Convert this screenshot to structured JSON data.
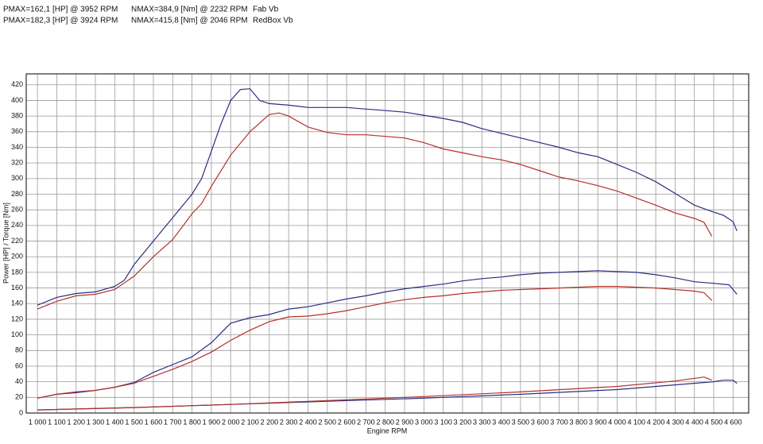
{
  "chart_data": {
    "type": "line",
    "legend": [
      {
        "pmax": "PMAX=162,1 [HP] @ 3952 RPM",
        "nmax": "NMAX=384,9 [Nm] @ 2232 RPM",
        "label": "Fab Vb"
      },
      {
        "pmax": "PMAX=182,3 [HP] @ 3924 RPM",
        "nmax": "NMAX=415,8 [Nm] @ 2046 RPM",
        "label": "RedBox Vb"
      }
    ],
    "y_label": "Power [HP] / Torque [Nm]",
    "x_label": "Engine RPM",
    "xlim": [
      942,
      4681
    ],
    "ylim": [
      0,
      434
    ],
    "grid": true,
    "yticks": [
      0,
      20,
      40,
      60,
      80,
      100,
      120,
      140,
      160,
      180,
      200,
      220,
      240,
      260,
      280,
      300,
      320,
      340,
      360,
      380,
      400,
      420
    ],
    "xticks": [
      {
        "value": 1000,
        "label": "1 000"
      },
      {
        "value": 1100,
        "label": "1 100"
      },
      {
        "value": 1200,
        "label": "1 200"
      },
      {
        "value": 1300,
        "label": "1 300"
      },
      {
        "value": 1400,
        "label": "1 400"
      },
      {
        "value": 1500,
        "label": "1 500"
      },
      {
        "value": 1600,
        "label": "1 600"
      },
      {
        "value": 1700,
        "label": "1 700"
      },
      {
        "value": 1800,
        "label": "1 800"
      },
      {
        "value": 1900,
        "label": "1 900"
      },
      {
        "value": 2000,
        "label": "2 000"
      },
      {
        "value": 2100,
        "label": "2 100"
      },
      {
        "value": 2200,
        "label": "2 200"
      },
      {
        "value": 2300,
        "label": "2 300"
      },
      {
        "value": 2400,
        "label": "2 400"
      },
      {
        "value": 2500,
        "label": "2 500"
      },
      {
        "value": 2600,
        "label": "2 600"
      },
      {
        "value": 2700,
        "label": "2 700"
      },
      {
        "value": 2800,
        "label": "2 800"
      },
      {
        "value": 2900,
        "label": "2 900"
      },
      {
        "value": 3000,
        "label": "3 000"
      },
      {
        "value": 3100,
        "label": "3 100"
      },
      {
        "value": 3200,
        "label": "3 200"
      },
      {
        "value": 3300,
        "label": "3 300"
      },
      {
        "value": 3400,
        "label": "3 400"
      },
      {
        "value": 3500,
        "label": "3 500"
      },
      {
        "value": 3600,
        "label": "3 600"
      },
      {
        "value": 3700,
        "label": "3 700"
      },
      {
        "value": 3800,
        "label": "3 800"
      },
      {
        "value": 3900,
        "label": "3 900"
      },
      {
        "value": 4000,
        "label": "4 000"
      },
      {
        "value": 4100,
        "label": "4 100"
      },
      {
        "value": 4200,
        "label": "4 200"
      },
      {
        "value": 4300,
        "label": "4 300"
      },
      {
        "value": 4400,
        "label": "4 400"
      },
      {
        "value": 4500,
        "label": "4 500"
      },
      {
        "value": 4600,
        "label": "4 600"
      }
    ],
    "series": [
      {
        "color": "#2a2f80",
        "x": [
          1000,
          1100,
          1200,
          1300,
          1400,
          1450,
          1500,
          1600,
          1700,
          1800,
          1850,
          1900,
          1950,
          2000,
          2050,
          2100,
          2150,
          2200,
          2300,
          2400,
          2500,
          2600,
          2700,
          2800,
          2900,
          3000,
          3100,
          3200,
          3300,
          3400,
          3500,
          3600,
          3700,
          3800,
          3900,
          4000,
          4100,
          4200,
          4300,
          4400,
          4500,
          4550,
          4600,
          4620
        ],
        "values": [
          138,
          148,
          153,
          155,
          162,
          170,
          190,
          220,
          250,
          280,
          300,
          335,
          370,
          400,
          414,
          415,
          400,
          396,
          394,
          391,
          391,
          391,
          389,
          387,
          385,
          381,
          377,
          372,
          364,
          358,
          352,
          346,
          340,
          333,
          328,
          318,
          308,
          296,
          281,
          266,
          257,
          253,
          245,
          233
        ]
      },
      {
        "color": "#b5302a",
        "x": [
          1000,
          1100,
          1200,
          1300,
          1400,
          1500,
          1600,
          1700,
          1800,
          1850,
          1900,
          2000,
          2100,
          2200,
          2250,
          2300,
          2400,
          2500,
          2600,
          2700,
          2800,
          2900,
          3000,
          3100,
          3200,
          3300,
          3400,
          3500,
          3600,
          3700,
          3800,
          3900,
          4000,
          4100,
          4200,
          4300,
          4400,
          4450,
          4490
        ],
        "values": [
          133,
          143,
          150,
          152,
          158,
          175,
          200,
          222,
          255,
          268,
          290,
          330,
          360,
          382,
          384,
          380,
          366,
          359,
          356,
          356,
          354,
          352,
          346,
          338,
          333,
          328,
          324,
          318,
          310,
          302,
          297,
          291,
          284,
          275,
          266,
          256,
          249,
          244,
          226
        ]
      },
      {
        "color": "#2a2f80",
        "x": [
          1000,
          1100,
          1200,
          1300,
          1400,
          1500,
          1600,
          1700,
          1800,
          1900,
          2000,
          2100,
          2200,
          2300,
          2400,
          2500,
          2600,
          2700,
          2800,
          2900,
          3000,
          3100,
          3200,
          3300,
          3400,
          3500,
          3600,
          3700,
          3800,
          3900,
          4000,
          4100,
          4200,
          4300,
          4400,
          4500,
          4580,
          4620
        ],
        "values": [
          19,
          24,
          26,
          29,
          33,
          39,
          52,
          62,
          72,
          90,
          115,
          122,
          126,
          133,
          136,
          141,
          146,
          150,
          155,
          159,
          162,
          165,
          169,
          172,
          174,
          177,
          179,
          180,
          181,
          182,
          181,
          180,
          177,
          173,
          168,
          166,
          164,
          152
        ]
      },
      {
        "color": "#b5302a",
        "x": [
          1000,
          1100,
          1200,
          1300,
          1400,
          1500,
          1600,
          1700,
          1800,
          1900,
          2000,
          2100,
          2200,
          2300,
          2400,
          2500,
          2600,
          2700,
          2800,
          2900,
          3000,
          3100,
          3200,
          3300,
          3400,
          3500,
          3600,
          3700,
          3800,
          3900,
          4000,
          4100,
          4200,
          4300,
          4400,
          4450,
          4490
        ],
        "values": [
          19,
          24,
          27,
          29,
          33,
          38,
          47,
          56,
          66,
          78,
          93,
          106,
          117,
          123,
          124,
          127,
          131,
          136,
          141,
          145,
          148,
          150,
          153,
          155,
          157,
          158,
          159,
          160,
          161,
          162,
          162,
          161,
          160,
          158,
          156,
          154,
          144
        ]
      },
      {
        "color": "#2a2f80",
        "x": [
          1000,
          1500,
          2000,
          2500,
          3000,
          3500,
          4000,
          4500,
          4550,
          4600,
          4620
        ],
        "values": [
          4,
          7,
          11,
          15,
          19,
          24,
          30,
          40,
          42,
          42,
          38
        ]
      },
      {
        "color": "#b5302a",
        "x": [
          1000,
          1500,
          2000,
          2500,
          3000,
          3500,
          4000,
          4300,
          4450,
          4490
        ],
        "values": [
          4,
          7,
          11,
          16,
          21,
          27,
          34,
          41,
          46,
          42
        ]
      }
    ]
  }
}
